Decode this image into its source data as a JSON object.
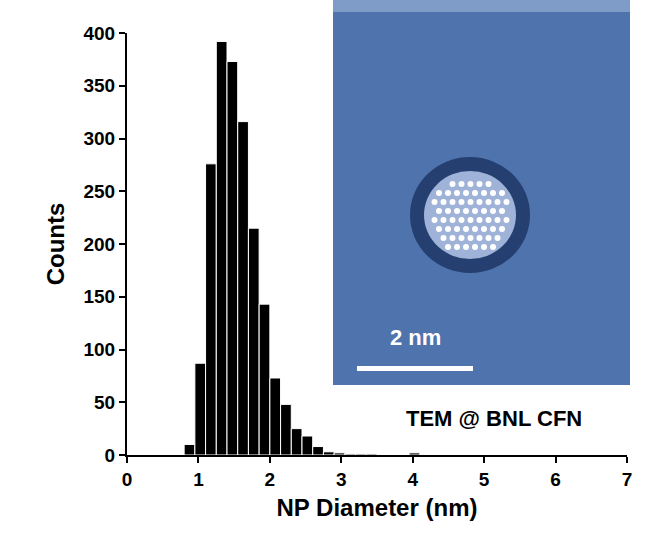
{
  "chart_data": {
    "type": "histogram",
    "x_label": "NP Diameter (nm)",
    "y_label": "Counts",
    "bins": [
      0.8,
      0.95,
      1.1,
      1.25,
      1.4,
      1.55,
      1.7,
      1.85,
      2.0,
      2.15,
      2.3,
      2.45,
      2.6,
      2.75,
      2.9,
      3.05,
      3.2,
      3.35,
      3.5,
      3.65,
      3.8,
      3.95,
      4.1
    ],
    "counts": [
      10,
      87,
      276,
      392,
      373,
      316,
      215,
      143,
      73,
      48,
      25,
      18,
      8,
      3,
      2,
      1,
      1,
      1,
      0,
      0,
      0,
      2
    ],
    "color": "#000000",
    "xlim": [
      0,
      7
    ],
    "xticks": [
      0,
      1,
      2,
      3,
      4,
      5,
      6,
      7
    ],
    "ylim": [
      0,
      400
    ],
    "yticks": [
      0,
      50,
      100,
      150,
      200,
      250,
      300,
      350,
      400
    ],
    "annotations": [
      "2 nm",
      "TEM @ BNL CFN"
    ],
    "grid": false
  }
}
